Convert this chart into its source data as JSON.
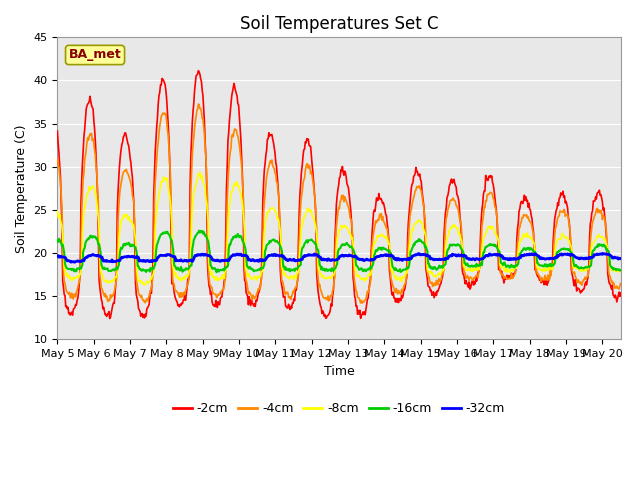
{
  "title": "Soil Temperatures Set C",
  "xlabel": "Time",
  "ylabel": "Soil Temperature (C)",
  "ylim": [
    10,
    45
  ],
  "series_labels": [
    "-2cm",
    "-4cm",
    "-8cm",
    "-16cm",
    "-32cm"
  ],
  "series_colors": [
    "#ff0000",
    "#ff8800",
    "#ffff00",
    "#00cc00",
    "#0000ff"
  ],
  "series_linewidths": [
    1.2,
    1.2,
    1.2,
    1.5,
    2.0
  ],
  "legend_label": "BA_met",
  "legend_box_facecolor": "#ffff99",
  "legend_box_edgecolor": "#999900",
  "legend_text_color": "#880000",
  "background_color": "#ffffff",
  "plot_bg_color": "#e8e8e8",
  "grid_color": "#ffffff",
  "title_fontsize": 12,
  "axis_fontsize": 9,
  "tick_fontsize": 8,
  "xtick_labels": [
    "May 5",
    "May 6",
    "May 7",
    "May 8",
    "May 9",
    "May 10",
    "May 11",
    "May 12",
    "May 13",
    "May 14",
    "May 15",
    "May 16",
    "May 17",
    "May 18",
    "May 19",
    "May 20"
  ],
  "n_days": 15.5,
  "points_per_day": 48
}
